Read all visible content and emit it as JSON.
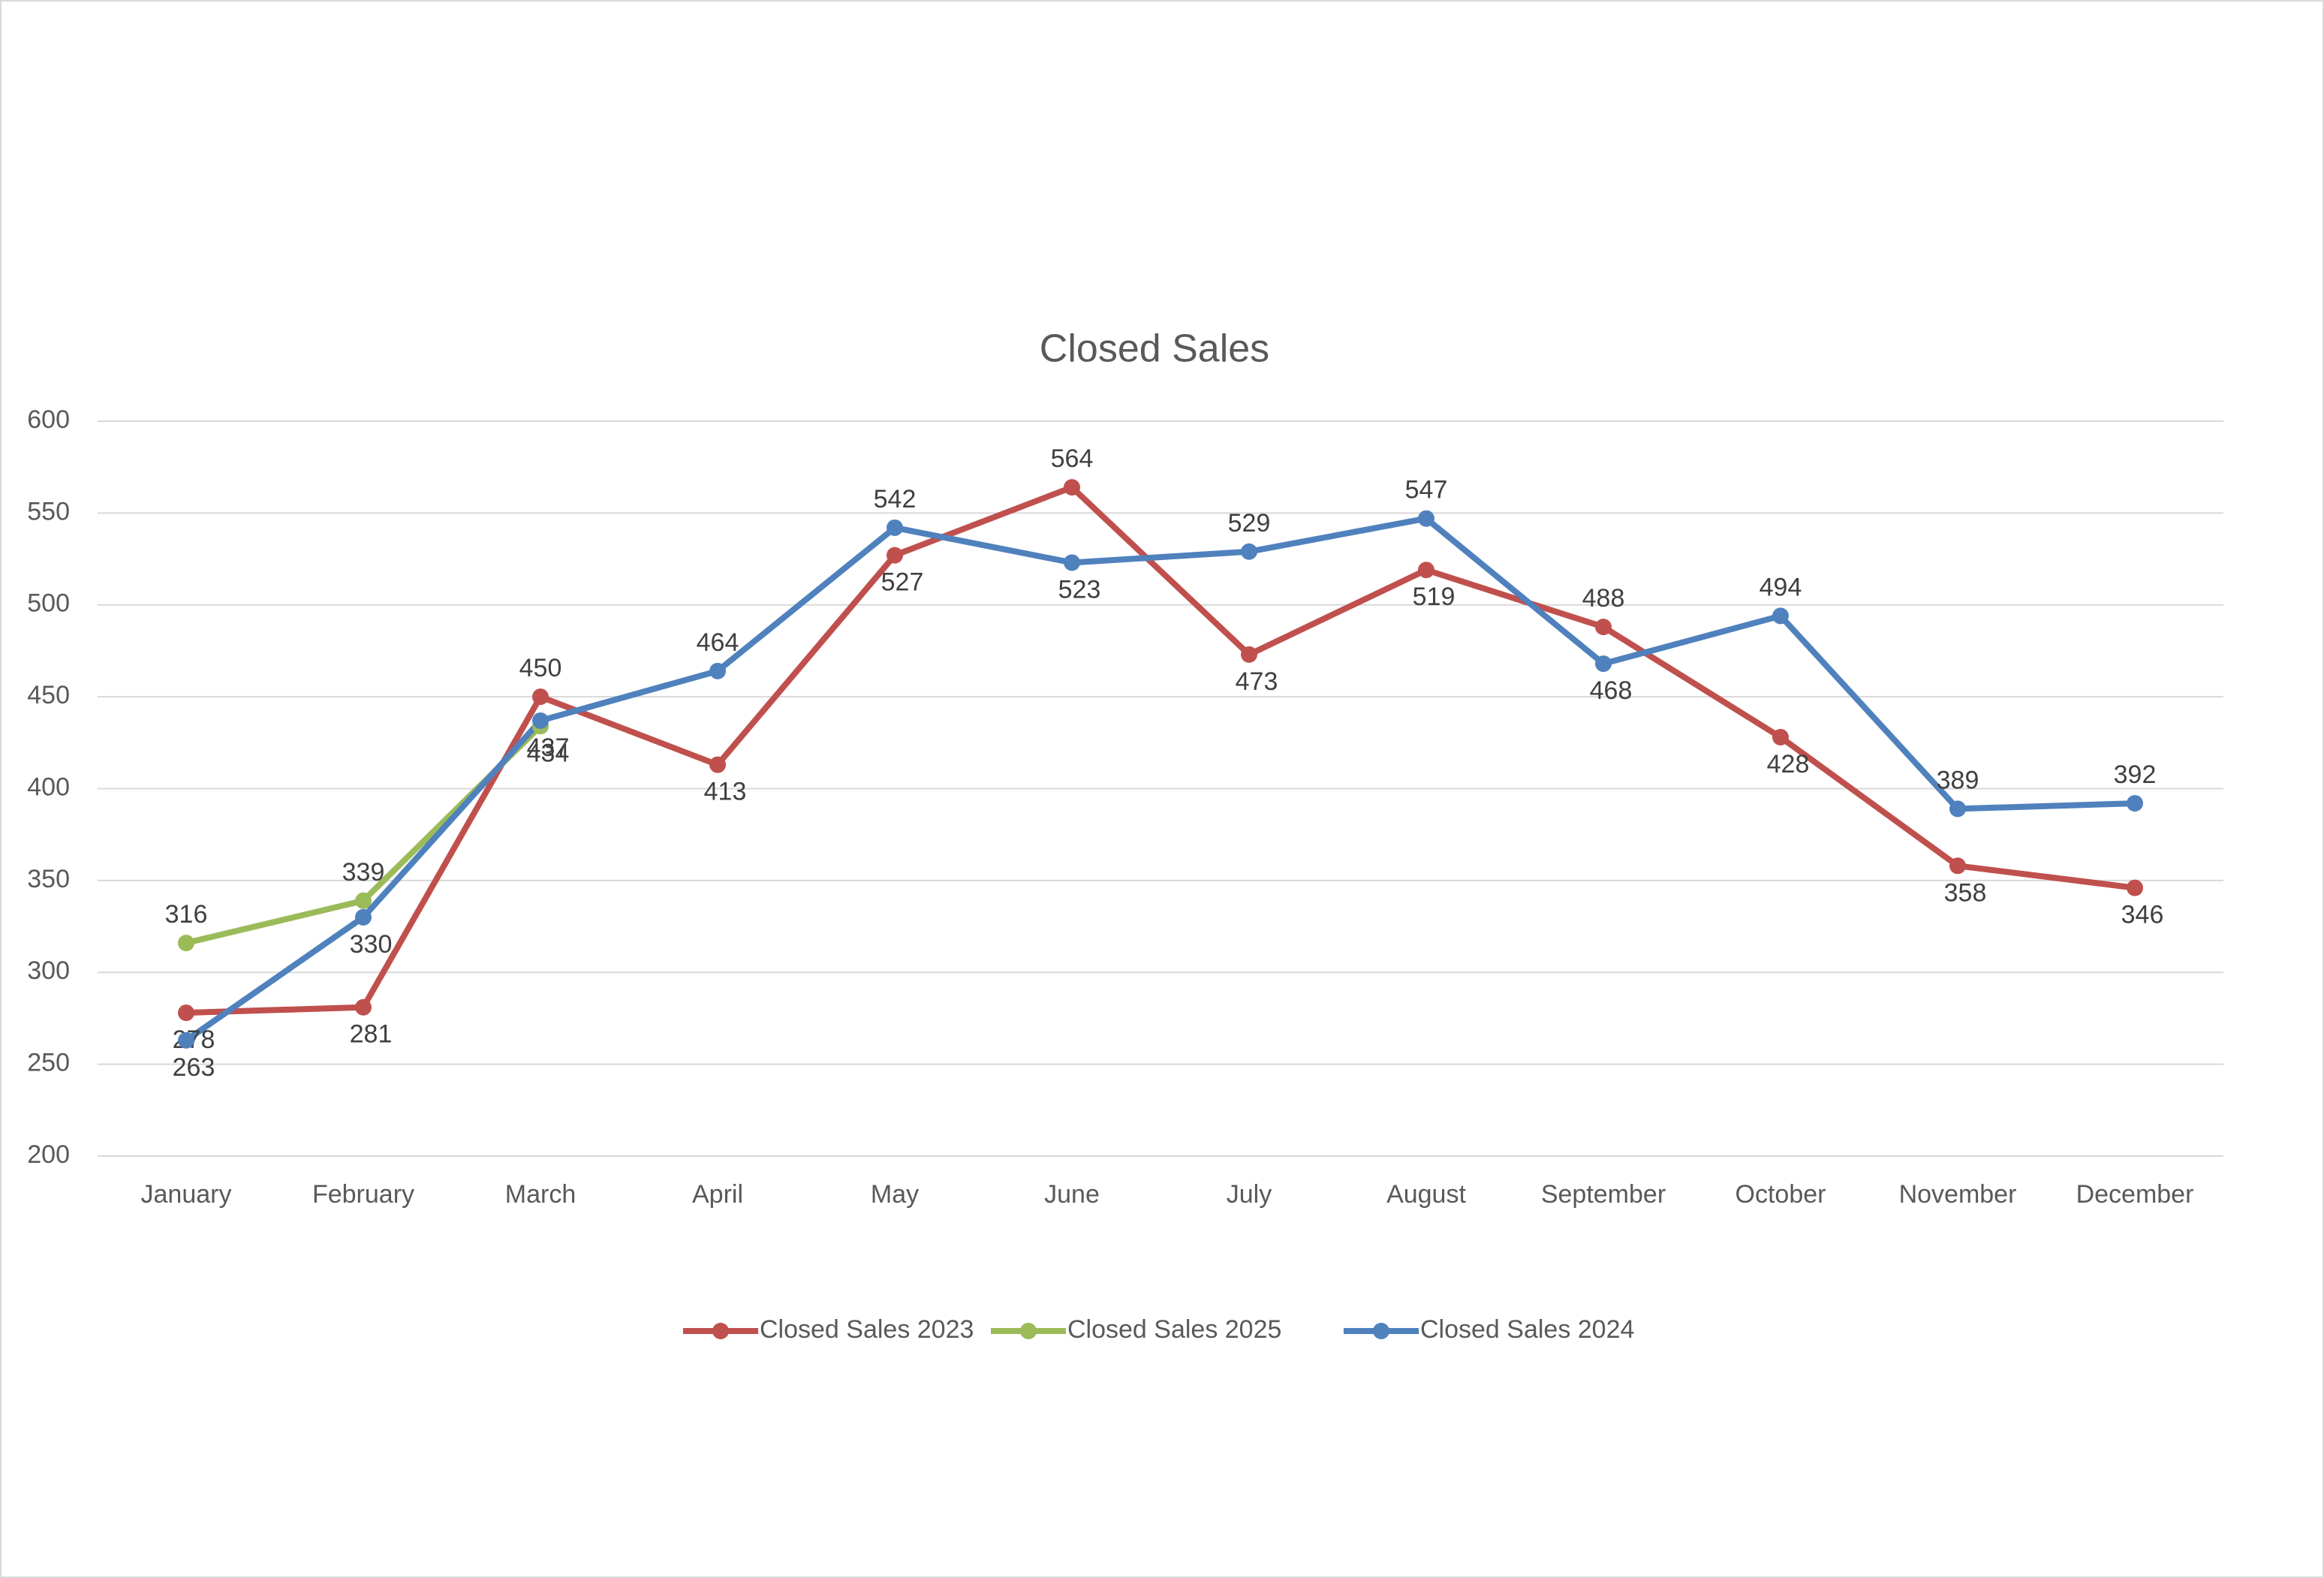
{
  "chart_data": {
    "type": "line",
    "title": "Closed Sales",
    "categories": [
      "January",
      "February",
      "March",
      "April",
      "May",
      "June",
      "July",
      "August",
      "September",
      "October",
      "November",
      "December"
    ],
    "series": [
      {
        "name": "Closed Sales 2023",
        "color": "#c0504d",
        "values": [
          278,
          281,
          450,
          413,
          527,
          564,
          473,
          519,
          488,
          428,
          358,
          346
        ]
      },
      {
        "name": "Closed Sales 2025",
        "color": "#9bbb59",
        "values": [
          316,
          339,
          434,
          null,
          null,
          null,
          null,
          null,
          null,
          null,
          null,
          null
        ]
      },
      {
        "name": "Closed Sales 2024",
        "color": "#4f81bd",
        "values": [
          263,
          330,
          437,
          464,
          542,
          523,
          529,
          547,
          468,
          494,
          389,
          392
        ]
      }
    ],
    "ylim": [
      200,
      600
    ],
    "yticks": [
      200,
      250,
      300,
      350,
      400,
      450,
      500,
      550,
      600
    ],
    "grid": true,
    "legend": "bottom"
  }
}
